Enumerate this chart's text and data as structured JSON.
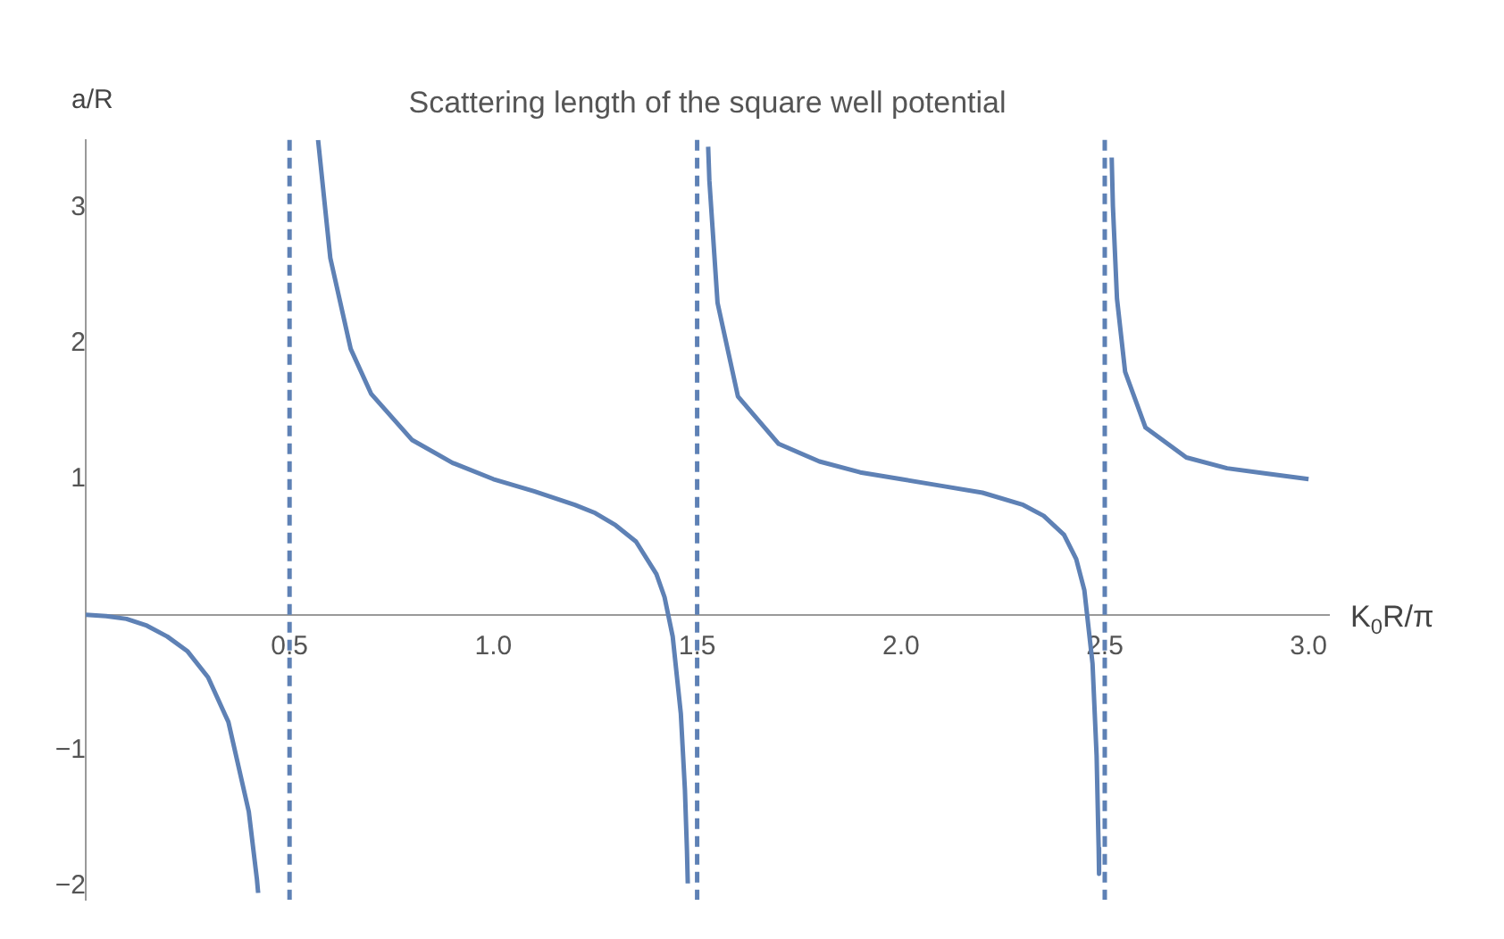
{
  "chart_data": {
    "type": "line",
    "title": "Scattering length of the square well potential",
    "xlabel": "K$_{0}$R/π",
    "ylabel": "a/R",
    "xlim": [
      0,
      3.05
    ],
    "ylim": [
      -2.1,
      3.5
    ],
    "xticks": [
      0.5,
      {
        "value": 1,
        "label": "1.0"
      },
      1.5,
      {
        "value": 2,
        "label": "2.0"
      },
      2.5,
      {
        "value": 3,
        "label": "3.0"
      }
    ],
    "yticks": [
      -2,
      -1,
      1,
      2,
      3
    ],
    "series": [
      {
        "color": "#5e81b5",
        "x": [
          0,
          0.05,
          0.1,
          0.15,
          0.2,
          0.25,
          0.3,
          0.35,
          0.4,
          0.42,
          0.423
        ],
        "values": [
          0,
          -0.01,
          -0.03,
          -0.08,
          -0.16,
          -0.27,
          -0.46,
          -0.79,
          -1.45,
          -1.95,
          -2.05
        ]
      },
      {
        "color": "#5e81b5",
        "x": [
          0.57,
          0.6,
          0.65,
          0.7,
          0.8,
          0.9,
          1.0,
          1.1,
          1.2,
          1.25,
          1.3,
          1.35,
          1.4,
          1.42,
          1.44,
          1.46,
          1.47,
          1.475,
          1.477
        ],
        "values": [
          3.5,
          2.63,
          1.96,
          1.63,
          1.29,
          1.12,
          1,
          0.91,
          0.81,
          0.75,
          0.66,
          0.54,
          0.3,
          0.13,
          -0.16,
          -0.73,
          -1.29,
          -1.74,
          -1.98
        ]
      },
      {
        "color": "#5e81b5",
        "x": [
          1.527,
          1.53,
          1.55,
          1.6,
          1.7,
          1.8,
          1.9,
          2.0,
          2.1,
          2.2,
          2.3,
          2.35,
          2.4,
          2.43,
          2.45,
          2.47,
          2.48,
          2.485,
          2.486
        ],
        "values": [
          3.45,
          3.2,
          2.3,
          1.61,
          1.26,
          1.13,
          1.05,
          1,
          0.95,
          0.9,
          0.81,
          0.73,
          0.59,
          0.41,
          0.18,
          -0.36,
          -1.04,
          -1.72,
          -1.91
        ]
      },
      {
        "color": "#5e81b5",
        "x": [
          2.517,
          2.52,
          2.53,
          2.55,
          2.6,
          2.7,
          2.8,
          2.9,
          3.0
        ],
        "values": [
          3.37,
          3.01,
          2.33,
          1.79,
          1.38,
          1.16,
          1.08,
          1.04,
          1
        ]
      }
    ],
    "ref_lines": [
      {
        "axis": "x",
        "value": 0.5,
        "color": "#5e81b5",
        "line_style": "dashed"
      },
      {
        "axis": "x",
        "value": 1.5,
        "color": "#5e81b5",
        "line_style": "dashed"
      },
      {
        "axis": "x",
        "value": 2.5,
        "color": "#5e81b5",
        "line_style": "dashed"
      }
    ],
    "grid": false,
    "legend": false,
    "marker": "none",
    "line_style": "solid"
  }
}
